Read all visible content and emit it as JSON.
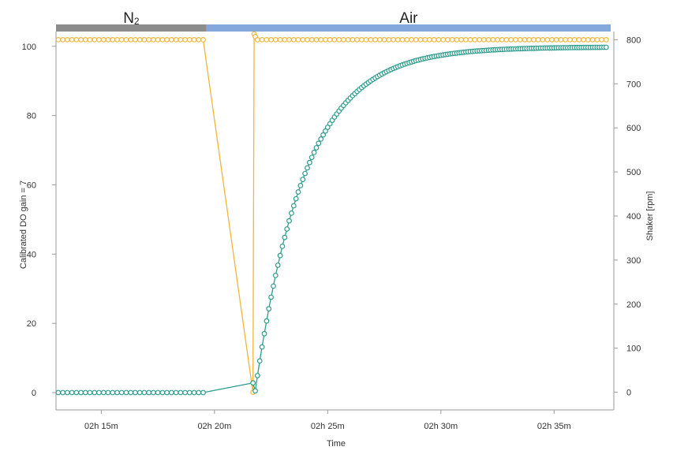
{
  "chart_data": {
    "type": "line",
    "title": "",
    "xlabel": "Time",
    "ylabel_left": "Calibrated DO gain = 7",
    "ylabel_right": "Shaker [rpm]",
    "xlim_minutes": [
      133,
      157.5
    ],
    "x_ticks": [
      {
        "minutes": 135,
        "label": "02h 15m"
      },
      {
        "minutes": 140,
        "label": "02h 20m"
      },
      {
        "minutes": 145,
        "label": "02h 25m"
      },
      {
        "minutes": 150,
        "label": "02h 30m"
      },
      {
        "minutes": 155,
        "label": "02h 35m"
      }
    ],
    "ylim_left": [
      -5,
      107
    ],
    "yticks_left": [
      "0",
      "20",
      "40",
      "60",
      "80",
      "100"
    ],
    "ylim_right": [
      -40,
      840
    ],
    "yticks_right": [
      "0",
      "100",
      "200",
      "300",
      "400",
      "500",
      "600",
      "700",
      "800"
    ],
    "grid": false,
    "legend": "none",
    "phases": [
      {
        "label": "N",
        "subscript": "2",
        "start_min": 133,
        "end_min": 139.65,
        "color": "#8c8c8c"
      },
      {
        "label": "Air",
        "start_min": 139.65,
        "end_min": 157.5,
        "color": "#85a8dc"
      }
    ],
    "series": [
      {
        "axis": "left",
        "color": "#2e9c8c",
        "segments": [
          {
            "x_start": 133.1,
            "x_end": 139.6,
            "step": 0.2,
            "value": 0.0
          },
          {
            "x": [
              141.7
            ],
            "y": [
              2.8
            ]
          },
          {
            "x_start": 141.8,
            "x_end": 157.3,
            "step": 0.1,
            "model": "rise",
            "initial": 0.5,
            "final": 99.8,
            "tau": 2.2
          }
        ]
      },
      {
        "axis": "right",
        "color": "#f2b53a",
        "segments": [
          {
            "x_start": 133.1,
            "x_end": 139.6,
            "step": 0.2,
            "value": 800
          },
          {
            "x": [
              141.7,
              141.75,
              141.8
            ],
            "y": [
              0,
              813,
              807
            ]
          },
          {
            "x_start": 141.9,
            "x_end": 157.3,
            "step": 0.2,
            "value": 800
          }
        ]
      }
    ]
  }
}
